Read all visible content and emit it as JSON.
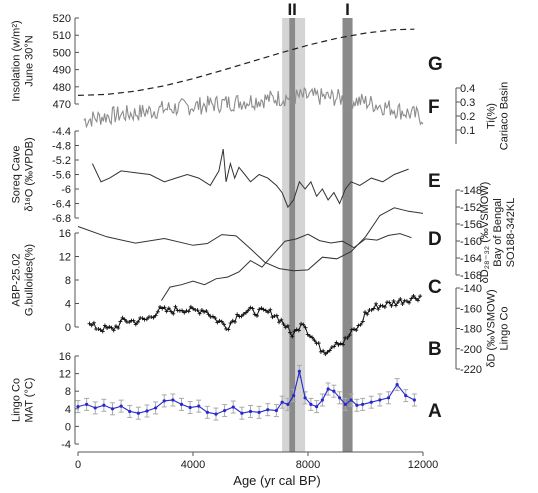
{
  "chart_data": {
    "type": "line",
    "x_axis": {
      "label": "Age (yr cal BP)",
      "range": [
        0,
        12000
      ],
      "ticks": [
        0,
        4000,
        8000,
        12000
      ],
      "tick_labels": [
        "0",
        "4000",
        "8000",
        "12000"
      ]
    },
    "bands": [
      {
        "label": "II",
        "light": [
          7100,
          7900
        ],
        "dark": [
          7350,
          7550
        ]
      },
      {
        "label": "I",
        "light": [],
        "dark": [
          9200,
          9550
        ]
      }
    ],
    "panels": [
      {
        "id": "G",
        "letter": "G",
        "axis_side": "left",
        "ylabel": [
          "Insolation (w/m²)",
          "June 30°N"
        ],
        "ylim": [
          470,
          520
        ],
        "ticks": [
          470,
          480,
          490,
          500,
          510,
          520
        ],
        "tick_labels": [
          "470",
          "480",
          "490",
          "500",
          "510",
          "520"
        ],
        "style": "dashed",
        "color": "#222222",
        "series": [
          {
            "x": [
              0,
              1000,
              2000,
              3000,
              4000,
              5000,
              6000,
              7000,
              8000,
              9000,
              10000,
              11000,
              11700
            ],
            "y": [
              475,
              475.6,
              477.5,
              480.6,
              484.7,
              489.5,
              494.5,
              499.5,
              504.2,
              508.2,
              511.2,
              513.2,
              513.5
            ]
          }
        ]
      },
      {
        "id": "F",
        "letter": "F",
        "axis_side": "right",
        "ylabel": [
          "Ti(%)",
          "Cariaco Basin"
        ],
        "ylim": [
          0.0,
          0.4
        ],
        "ticks": [
          0.1,
          0.2,
          0.3,
          0.4
        ],
        "tick_labels": [
          "0.1",
          "0.2",
          "0.3",
          "0.4"
        ],
        "style": "noisy",
        "color": "#8c8c8c",
        "series": [
          {
            "x": [
              200,
              1000,
              2000,
              3000,
              4000,
              5000,
              6000,
              7000,
              8000,
              9000,
              10000,
              11000,
              12000
            ],
            "y": [
              0.17,
              0.2,
              0.22,
              0.25,
              0.27,
              0.29,
              0.31,
              0.33,
              0.34,
              0.33,
              0.3,
              0.25,
              0.19
            ]
          }
        ]
      },
      {
        "id": "E",
        "letter": "E",
        "axis_side": "left",
        "ylabel": [
          "Soreq Cave",
          "δ¹⁸O (‰VPDB)"
        ],
        "ylim": [
          -6.8,
          -4.4
        ],
        "ticks": [
          -6.8,
          -6.4,
          -6.0,
          -5.6,
          -5.2,
          -4.8,
          -4.4
        ],
        "tick_labels": [
          "-6.8",
          "-6.4",
          "-6",
          "-5.6",
          "-5.2",
          "-4.8",
          "-4.4"
        ],
        "style": "line",
        "color": "#333333",
        "series": [
          {
            "x": [
              500,
              800,
              1100,
              1500,
              2000,
              2500,
              3000,
              3400,
              3800,
              4200,
              4600,
              4900,
              5050,
              5150,
              5300,
              5450,
              5600,
              5800,
              6000,
              6300,
              6600,
              6900,
              7100,
              7300,
              7500,
              7700,
              7900,
              8100,
              8300,
              8500,
              8700,
              8900,
              9100,
              9300,
              9500,
              9800,
              10200,
              10600,
              11000,
              11500
            ],
            "y": [
              -5.3,
              -5.8,
              -5.7,
              -5.5,
              -5.55,
              -5.6,
              -5.8,
              -5.7,
              -5.6,
              -5.7,
              -5.9,
              -5.5,
              -4.9,
              -5.8,
              -5.3,
              -5.7,
              -5.4,
              -5.6,
              -5.8,
              -5.6,
              -5.7,
              -5.9,
              -6.1,
              -6.5,
              -6.3,
              -5.8,
              -6.0,
              -5.8,
              -6.2,
              -6.0,
              -6.3,
              -6.1,
              -6.4,
              -6.0,
              -5.8,
              -5.9,
              -5.7,
              -5.8,
              -5.6,
              -5.45
            ]
          }
        ]
      },
      {
        "id": "D",
        "letter": "D",
        "axis_side": "right",
        "ylabel": [
          "δD₂₈₋₃₂ (‰VSMOW)",
          "Bay of Bengal",
          "SO188-342KL"
        ],
        "ylim": [
          -168,
          -148
        ],
        "ticks": [
          -168,
          -164,
          -160,
          -156,
          -152,
          -148
        ],
        "tick_labels": [
          "-168",
          "-164",
          "-160",
          "-156",
          "-152",
          "-148"
        ],
        "style": "line",
        "color": "#333333",
        "series": [
          {
            "x": [
              0,
              1000,
              2000,
              3000,
              4000,
              4500,
              5000,
              5500,
              6000,
              6500,
              7000,
              7500,
              8000,
              8500,
              9000,
              9500,
              10000,
              10500,
              11000,
              11500,
              12000
            ],
            "y": [
              -156.6,
              -159.0,
              -160.5,
              -159.4,
              -161.0,
              -160.6,
              -158.5,
              -158.8,
              -161.8,
              -165.0,
              -166.5,
              -167.0,
              -166.8,
              -163.8,
              -164.2,
              -162.5,
              -159.0,
              -154.0,
              -152.2,
              -153.0,
              -153.5
            ]
          }
        ]
      },
      {
        "id": "C",
        "letter": "C",
        "axis_side": "left",
        "ylabel": [
          "ABP-25.02",
          "G.bulloides(%)"
        ],
        "ylim": [
          0,
          16
        ],
        "ticks": [
          0,
          4,
          8,
          12,
          16
        ],
        "tick_labels": [
          "0",
          "4",
          "8",
          "12",
          "16"
        ],
        "style": "line",
        "color": "#333333",
        "series": [
          {
            "x": [
              2900,
              3200,
              3600,
              4000,
              4400,
              4800,
              5200,
              5600,
              6000,
              6400,
              6800,
              7200,
              7600,
              8000,
              8400,
              8800,
              9200,
              9600,
              10000,
              10400,
              10800,
              11200,
              11600
            ],
            "y": [
              4.5,
              6.8,
              7.2,
              7.8,
              7.2,
              8.2,
              8.5,
              9.4,
              11.3,
              10.2,
              12.4,
              14.6,
              15.0,
              15.8,
              14.7,
              14.3,
              14.6,
              13.5,
              15.0,
              14.8,
              15.6,
              15.9,
              15.2
            ]
          }
        ]
      },
      {
        "id": "B",
        "letter": "B",
        "axis_side": "right",
        "ylabel": [
          "δD (‰VSMOW)",
          "Lingo Co"
        ],
        "ylim": [
          -220,
          -140
        ],
        "ticks": [
          -220,
          -200,
          -180,
          -160,
          -140
        ],
        "tick_labels": [
          "-220",
          "-200",
          "-180",
          "-160",
          "-140"
        ],
        "style": "markers",
        "color": "#111111",
        "series": [
          {
            "x": [
              400,
              800,
              1200,
              1600,
              2000,
              2400,
              2800,
              3200,
              3600,
              4000,
              4400,
              4800,
              5200,
              5600,
              6000,
              6400,
              6800,
              7200,
              7400,
              7600,
              7800,
              8000,
              8200,
              8400,
              8600,
              8800,
              9000,
              9200,
              9400,
              9600,
              9800,
              10000,
              10400,
              10800,
              11200,
              11600,
              11900
            ],
            "y": [
              -177,
              -180,
              -181,
              -172,
              -173,
              -171,
              -162,
              -163,
              -160,
              -163,
              -161,
              -171,
              -178,
              -165,
              -163,
              -164,
              -165,
              -176,
              -186,
              -183,
              -171,
              -183,
              -191,
              -199,
              -202,
              -198,
              -192,
              -195,
              -188,
              -182,
              -178,
              -165,
              -158,
              -156,
              -153,
              -150,
              -148
            ]
          }
        ]
      },
      {
        "id": "A",
        "letter": "A",
        "axis_side": "left",
        "ylabel": [
          "Lingo Co",
          "MAT (°C)"
        ],
        "ylim": [
          -4,
          16
        ],
        "ticks": [
          -4,
          0,
          4,
          8,
          12,
          16
        ],
        "tick_labels": [
          "-4",
          "0",
          "4",
          "8",
          "12",
          "16"
        ],
        "style": "errorbars",
        "color": "#2828d0",
        "errorbar_color": "#aaaaaa",
        "series": [
          {
            "x": [
              0,
              300,
              600,
              900,
              1200,
              1500,
              1800,
              2100,
              2400,
              2700,
              3000,
              3300,
              3600,
              3900,
              4200,
              4500,
              4800,
              5100,
              5400,
              5700,
              6000,
              6300,
              6600,
              6900,
              7100,
              7300,
              7500,
              7700,
              7900,
              8100,
              8300,
              8500,
              8700,
              8900,
              9100,
              9300,
              9500,
              9700,
              9900,
              10200,
              10500,
              10800,
              11100,
              11400,
              11700
            ],
            "y": [
              4.5,
              5.0,
              4.2,
              4.8,
              4.0,
              4.6,
              3.4,
              3.0,
              3.5,
              4.2,
              5.8,
              6.0,
              5.0,
              4.3,
              4.6,
              3.2,
              2.8,
              3.6,
              4.4,
              3.0,
              3.4,
              3.2,
              3.8,
              3.6,
              5.5,
              5.0,
              7.0,
              12.5,
              6.5,
              5.0,
              4.5,
              6.0,
              8.5,
              8.0,
              6.5,
              5.0,
              6.0,
              4.8,
              5.0,
              5.5,
              6.0,
              6.5,
              9.5,
              7.0,
              6.0
            ]
          }
        ]
      }
    ]
  }
}
